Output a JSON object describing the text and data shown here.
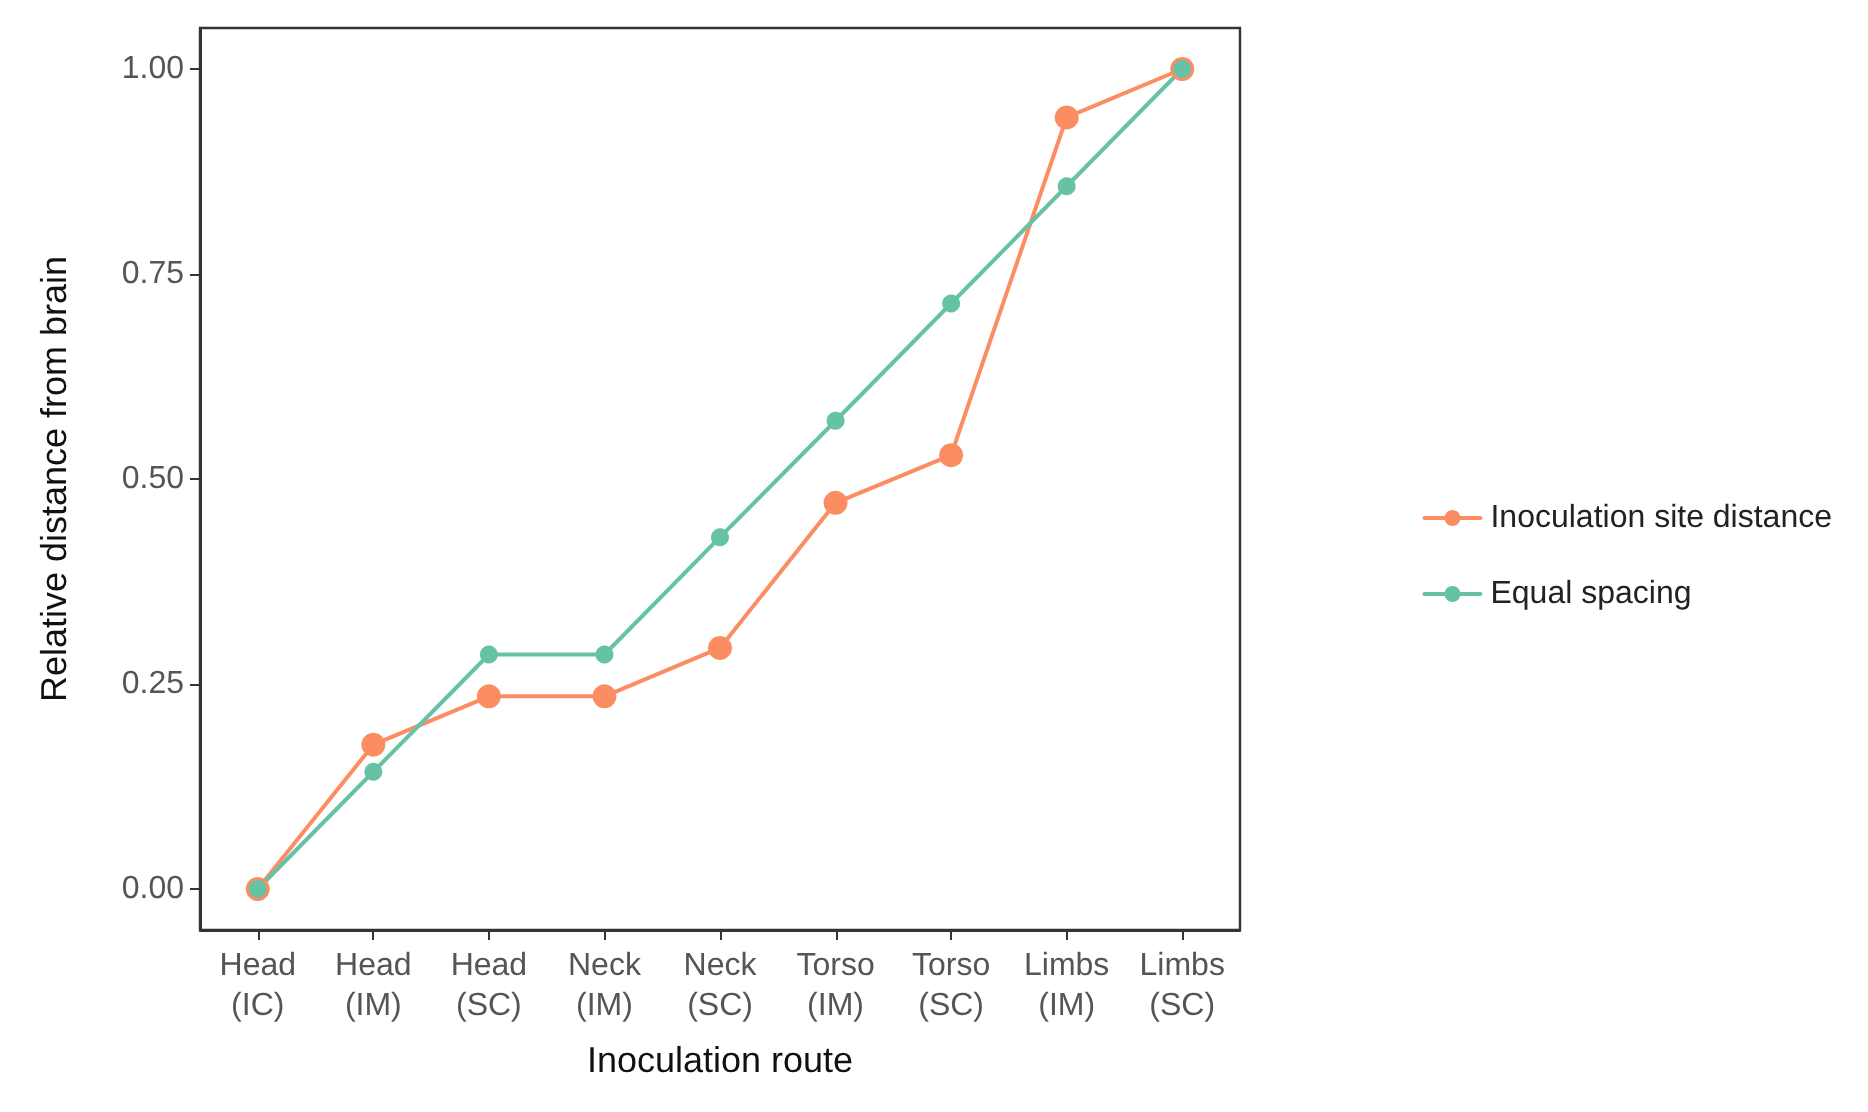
{
  "chart_data": {
    "type": "line",
    "xlabel": "Inoculation route",
    "ylabel": "Relative distance from brain",
    "categories": [
      "Head\n(IC)",
      "Head\n(IM)",
      "Head\n(SC)",
      "Neck\n(IM)",
      "Neck\n(SC)",
      "Torso\n(IM)",
      "Torso\n(SC)",
      "Limbs\n(IM)",
      "Limbs\n(SC)"
    ],
    "series": [
      {
        "name": "Inoculation site distance",
        "color": "#fc8d62",
        "values": [
          0,
          0.176,
          0.235,
          0.235,
          0.294,
          0.471,
          0.529,
          0.941,
          1
        ]
      },
      {
        "name": "Equal spacing",
        "color": "#66c2a5",
        "values": [
          0,
          0.143,
          0.286,
          0.286,
          0.429,
          0.571,
          0.714,
          0.857,
          1
        ]
      }
    ],
    "ylim": [
      -0.05,
      1.05
    ],
    "yticks": [
      {
        "value": 0,
        "label": "0.00"
      },
      {
        "value": 0.25,
        "label": "0.25"
      },
      {
        "value": 0.5,
        "label": "0.50"
      },
      {
        "value": 0.75,
        "label": "0.75"
      },
      {
        "value": 1,
        "label": "1.00"
      }
    ],
    "grid": false,
    "legend": "right",
    "marker": "circle",
    "line_style": "solid"
  }
}
